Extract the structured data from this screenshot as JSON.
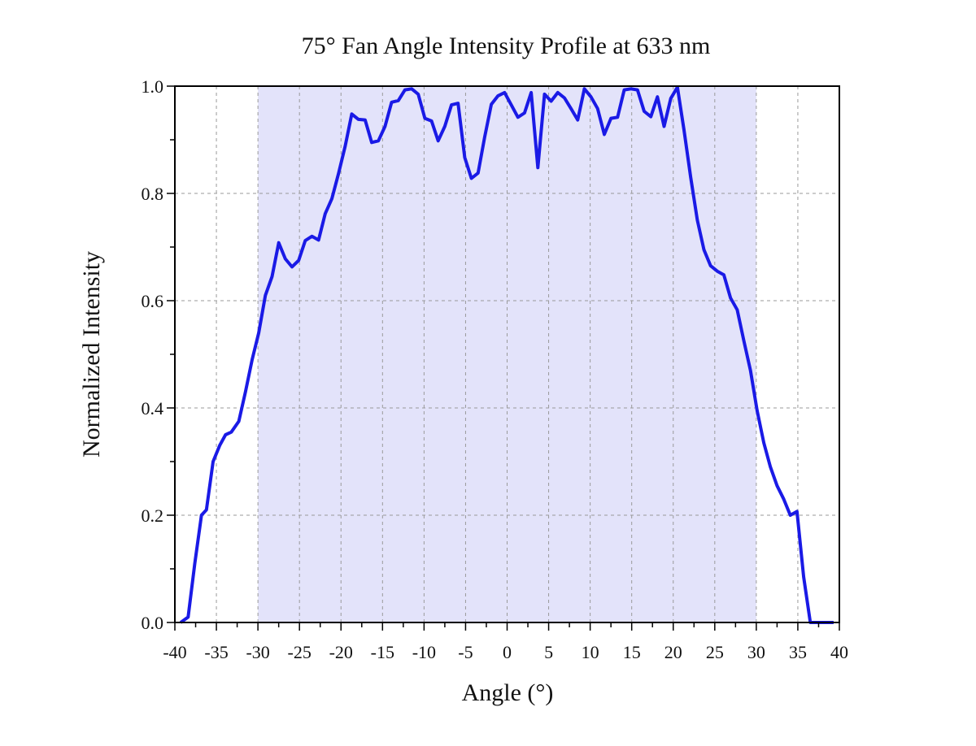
{
  "chart_data": {
    "type": "line",
    "title": "75° Fan Angle Intensity Profile at 633 nm",
    "xlabel": "Angle (°)",
    "ylabel": "Normalized Intensity",
    "xlim": [
      -40,
      40
    ],
    "ylim": [
      0,
      1
    ],
    "x_ticks": [
      -40,
      -35,
      -30,
      -25,
      -20,
      -15,
      -10,
      -5,
      0,
      5,
      10,
      15,
      20,
      25,
      30,
      35,
      40
    ],
    "x_tick_labels": [
      "-40",
      "-35",
      "-30",
      "-25",
      "-20",
      "-15",
      "-10",
      "-5",
      "0",
      "5",
      "10",
      "15",
      "20",
      "25",
      "30",
      "35",
      "40"
    ],
    "y_ticks": [
      0,
      0.2,
      0.4,
      0.6,
      0.8,
      1.0
    ],
    "y_tick_labels": [
      "0.0",
      "0.2",
      "0.4",
      "0.6",
      "0.8",
      "1.0"
    ],
    "grid": true,
    "legend": "none",
    "shaded_region": {
      "x_range": [
        -30,
        30
      ],
      "color": "#e3e3fa"
    },
    "line_color": "#1a1ae6",
    "series": [
      {
        "x": [
          -39.3,
          -38.4,
          -37.6,
          -36.8,
          -36.2,
          -35.4,
          -34.6,
          -33.9,
          -33.2,
          -32.3,
          -31.5,
          -30.7,
          -29.9,
          -29.1,
          -28.3,
          -27.5,
          -26.7,
          -25.9,
          -25.1,
          -24.3,
          -23.5,
          -22.7,
          -21.9,
          -21.1,
          -20.3,
          -19.5,
          -18.7,
          -17.9,
          -17.1,
          -16.3,
          -15.5,
          -14.7,
          -13.9,
          -13.1,
          -12.3,
          -11.5,
          -10.7,
          -9.9,
          -9.1,
          -8.3,
          -7.5,
          -6.7,
          -5.9,
          -5.1,
          -4.3,
          -3.5,
          -2.7,
          -1.9,
          -1.1,
          -0.3,
          0.5,
          1.3,
          2.1,
          2.9,
          3.7,
          4.5,
          5.3,
          6.1,
          6.9,
          7.7,
          8.5,
          9.3,
          10.1,
          10.9,
          11.7,
          12.5,
          13.3,
          14.1,
          14.9,
          15.7,
          16.5,
          17.3,
          18.1,
          18.9,
          19.7,
          20.5,
          21.3,
          22.1,
          22.9,
          23.7,
          24.5,
          25.3,
          26.1,
          26.9,
          27.7,
          28.5,
          29.3,
          30.1,
          30.9,
          31.7,
          32.5,
          33.3,
          34.1,
          34.9,
          35.7,
          36.5,
          37.2,
          37.9,
          38.6,
          39.3
        ],
        "y": [
          0.0,
          0.01,
          0.11,
          0.2,
          0.21,
          0.3,
          0.33,
          0.35,
          0.355,
          0.375,
          0.43,
          0.49,
          0.54,
          0.61,
          0.645,
          0.708,
          0.678,
          0.663,
          0.675,
          0.712,
          0.72,
          0.713,
          0.762,
          0.79,
          0.837,
          0.888,
          0.948,
          0.938,
          0.937,
          0.895,
          0.898,
          0.925,
          0.97,
          0.973,
          0.993,
          0.995,
          0.985,
          0.94,
          0.935,
          0.898,
          0.925,
          0.965,
          0.968,
          0.867,
          0.828,
          0.838,
          0.905,
          0.966,
          0.982,
          0.988,
          0.965,
          0.942,
          0.95,
          0.988,
          0.848,
          0.985,
          0.972,
          0.988,
          0.978,
          0.958,
          0.937,
          0.995,
          0.98,
          0.958,
          0.91,
          0.94,
          0.942,
          0.993,
          0.995,
          0.993,
          0.953,
          0.943,
          0.98,
          0.925,
          0.977,
          0.998,
          0.918,
          0.83,
          0.75,
          0.695,
          0.665,
          0.655,
          0.648,
          0.605,
          0.583,
          0.525,
          0.47,
          0.395,
          0.335,
          0.29,
          0.255,
          0.23,
          0.2,
          0.207,
          0.085,
          0.0,
          0.0,
          0.0,
          0.0,
          0.0
        ]
      }
    ]
  }
}
